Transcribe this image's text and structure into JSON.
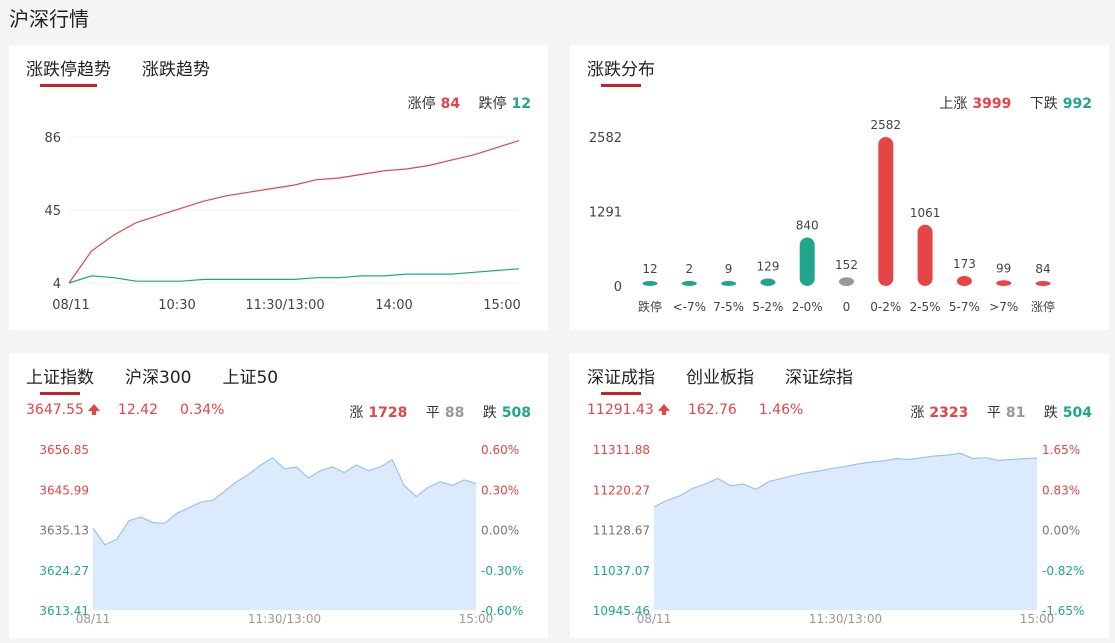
{
  "page": {
    "title": "沪深行情"
  },
  "trend": {
    "tabs": [
      "涨跌停趋势",
      "涨跌趋势"
    ],
    "legend": {
      "up_label": "涨停",
      "up_value": "84",
      "down_label": "跌停",
      "down_value": "12"
    },
    "chart_data": {
      "type": "line",
      "x_ticks": [
        "08/11",
        "10:30",
        "11:30/13:00",
        "14:00",
        "15:00"
      ],
      "y_ticks": [
        "86",
        "45",
        "4"
      ],
      "ylim": [
        4,
        86
      ],
      "series": [
        {
          "name": "涨停",
          "color": "#e54546",
          "values": [
            4,
            22,
            31,
            38,
            42,
            46,
            50,
            53,
            55,
            57,
            59,
            62,
            63,
            65,
            67,
            68,
            70,
            73,
            76,
            80,
            84
          ]
        },
        {
          "name": "跌停",
          "color": "#1fa68d",
          "values": [
            4,
            8,
            7,
            5,
            5,
            5,
            6,
            6,
            6,
            6,
            6,
            7,
            7,
            8,
            8,
            9,
            9,
            9,
            10,
            11,
            12
          ]
        }
      ]
    }
  },
  "distribution": {
    "tabs": [
      "涨跌分布"
    ],
    "legend": {
      "up_label": "上涨",
      "up_value": "3999",
      "down_label": "下跌",
      "down_value": "992"
    },
    "chart_data": {
      "type": "bar",
      "categories": [
        "跌停",
        "<-7%",
        "7-5%",
        "5-2%",
        "2-0%",
        "0",
        "0-2%",
        "2-5%",
        "5-7%",
        ">7%",
        "涨停"
      ],
      "values": [
        12,
        2,
        9,
        129,
        840,
        152,
        2582,
        1061,
        173,
        99,
        84
      ],
      "colors": [
        "#1fa68d",
        "#1fa68d",
        "#1fa68d",
        "#1fa68d",
        "#1fa68d",
        "#999999",
        "#e54546",
        "#e54546",
        "#e54546",
        "#e54546",
        "#e54546"
      ],
      "y_ticks": [
        "2582",
        "1291",
        "0"
      ],
      "ylim": [
        0,
        2582
      ]
    }
  },
  "sh_index": {
    "tabs": [
      "上证指数",
      "沪深300",
      "上证50"
    ],
    "quote": {
      "price": "3647.55",
      "change": "12.42",
      "pct": "0.34%"
    },
    "stats": {
      "up_label": "涨",
      "up": "1728",
      "flat_label": "平",
      "flat": "88",
      "down_label": "跌",
      "down": "508"
    },
    "chart_data": {
      "type": "area",
      "y_ticks_left": [
        "3656.85",
        "3645.99",
        "3635.13",
        "3624.27",
        "3613.41"
      ],
      "y_ticks_right": [
        "0.60%",
        "0.30%",
        "0.00%",
        "-0.30%",
        "-0.60%"
      ],
      "x_ticks": [
        "08/11",
        "11:30/13:00",
        "15:00"
      ],
      "ylim": [
        3613.41,
        3656.85
      ],
      "values": [
        3635.5,
        3631.0,
        3632.5,
        3637.5,
        3638.5,
        3637.0,
        3636.8,
        3639.5,
        3641.0,
        3642.5,
        3643.0,
        3645.5,
        3648.0,
        3650.0,
        3652.5,
        3654.5,
        3651.5,
        3652.0,
        3649.0,
        3651.0,
        3652.0,
        3650.5,
        3652.5,
        3651.0,
        3652.0,
        3654.0,
        3647.0,
        3644.0,
        3646.5,
        3648.0,
        3647.0,
        3648.5,
        3647.55
      ]
    }
  },
  "sz_index": {
    "tabs": [
      "深证成指",
      "创业板指",
      "深证综指"
    ],
    "quote": {
      "price": "11291.43",
      "change": "162.76",
      "pct": "1.46%"
    },
    "stats": {
      "up_label": "涨",
      "up": "2323",
      "flat_label": "平",
      "flat": "81",
      "down_label": "跌",
      "down": "504"
    },
    "chart_data": {
      "type": "area",
      "y_ticks_left": [
        "11311.88",
        "11220.27",
        "11128.67",
        "11037.07",
        "10945.46"
      ],
      "y_ticks_right": [
        "1.65%",
        "0.83%",
        "0.00%",
        "-0.82%",
        "-1.65%"
      ],
      "x_ticks": [
        "08/11",
        "11:30/13:00",
        "15:00"
      ],
      "ylim": [
        10945.46,
        11311.88
      ],
      "values": [
        11180,
        11195,
        11205,
        11222,
        11232,
        11245,
        11228,
        11232,
        11220,
        11238,
        11245,
        11252,
        11258,
        11262,
        11268,
        11272,
        11278,
        11282,
        11285,
        11290,
        11288,
        11292,
        11296,
        11298,
        11302,
        11290,
        11292,
        11286,
        11288,
        11290,
        11291.43
      ]
    }
  }
}
